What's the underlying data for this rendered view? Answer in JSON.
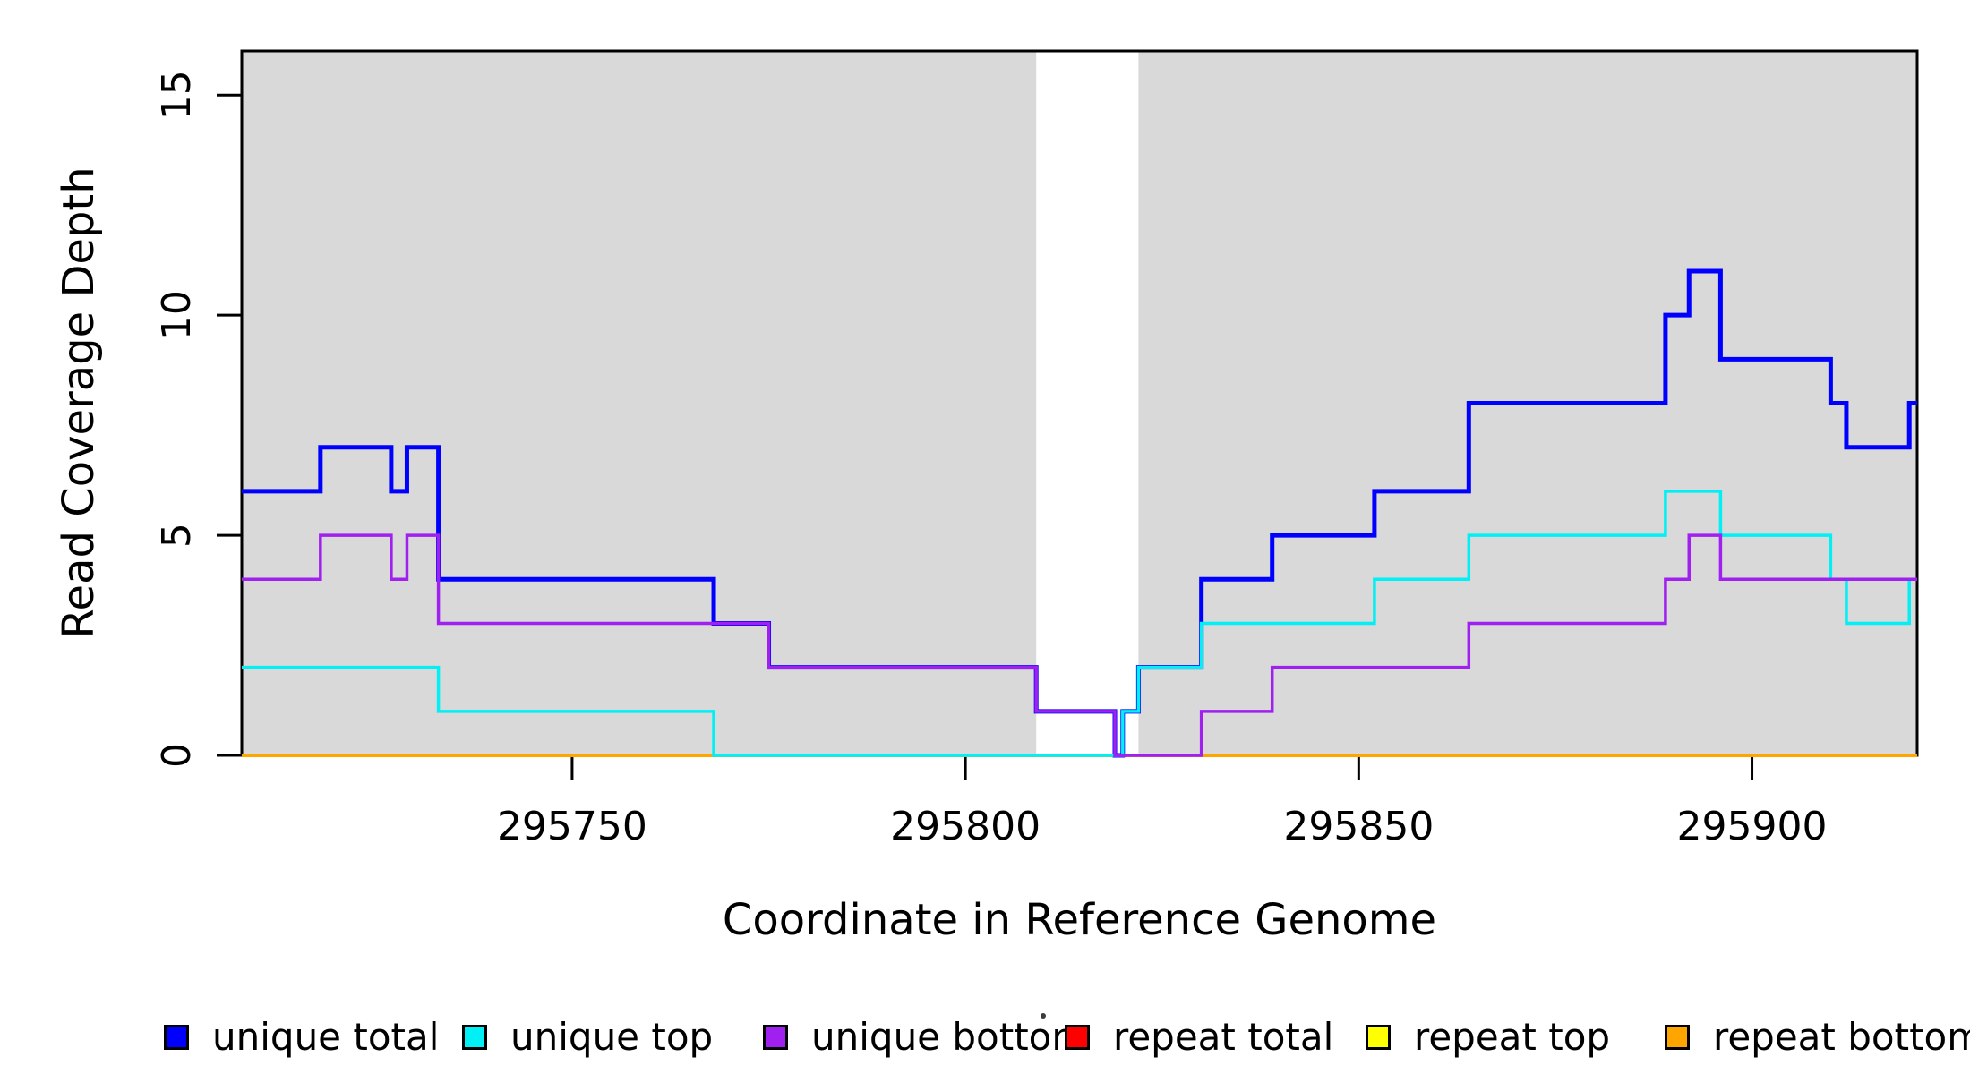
{
  "figure": {
    "background": "#FFFFFF"
  },
  "chart_data": {
    "type": "line",
    "subtype": "step-coverage-plot",
    "title": "",
    "xlabel": "Coordinate in Reference Genome",
    "ylabel": "Read Coverage Depth",
    "xlim": [
      295708,
      295921
    ],
    "ylim": [
      0,
      16
    ],
    "x_ticks": [
      "295750",
      "295800",
      "295850",
      "295900"
    ],
    "x_tick_values": [
      295750,
      295800,
      295850,
      295900
    ],
    "y_ticks": [
      "0",
      "5",
      "10",
      "15"
    ],
    "y_tick_values": [
      0,
      5,
      10,
      15
    ],
    "grid": "off",
    "step_style": "post",
    "shade_color": "#D9D9D9",
    "shaded_regions": [
      [
        295708,
        295809
      ],
      [
        295822,
        295921
      ]
    ],
    "gap_region": [
      295809,
      295822
    ],
    "draw_order": [
      "repeat total",
      "repeat top",
      "repeat bottom",
      "unique total",
      "unique top",
      "unique bottom"
    ],
    "series": [
      {
        "name": "unique total",
        "color": "#0000FF",
        "line_width": 5,
        "breakpoints": [
          [
            295708,
            6
          ],
          [
            295718,
            7
          ],
          [
            295727,
            6
          ],
          [
            295729,
            7
          ],
          [
            295733,
            4
          ],
          [
            295768,
            3
          ],
          [
            295775,
            2
          ],
          [
            295809,
            1
          ],
          [
            295819,
            0
          ],
          [
            295820,
            1
          ],
          [
            295822,
            2
          ],
          [
            295830,
            4
          ],
          [
            295839,
            5
          ],
          [
            295852,
            6
          ],
          [
            295864,
            8
          ],
          [
            295889,
            10
          ],
          [
            295892,
            11
          ],
          [
            295896,
            9
          ],
          [
            295910,
            8
          ],
          [
            295912,
            7
          ],
          [
            295920,
            8
          ]
        ]
      },
      {
        "name": "unique top",
        "color": "#00F0F5",
        "line_width": 3.5,
        "breakpoints": [
          [
            295708,
            2
          ],
          [
            295733,
            1
          ],
          [
            295768,
            0
          ],
          [
            295820,
            1
          ],
          [
            295822,
            2
          ],
          [
            295830,
            3
          ],
          [
            295852,
            4
          ],
          [
            295864,
            5
          ],
          [
            295889,
            6
          ],
          [
            295896,
            5
          ],
          [
            295910,
            4
          ],
          [
            295912,
            3
          ],
          [
            295920,
            4
          ]
        ]
      },
      {
        "name": "unique bottom",
        "color": "#A020F0",
        "line_width": 3.5,
        "breakpoints": [
          [
            295708,
            4
          ],
          [
            295718,
            5
          ],
          [
            295727,
            4
          ],
          [
            295729,
            5
          ],
          [
            295733,
            3
          ],
          [
            295775,
            2
          ],
          [
            295809,
            1
          ],
          [
            295819,
            0
          ],
          [
            295830,
            1
          ],
          [
            295839,
            2
          ],
          [
            295864,
            3
          ],
          [
            295889,
            4
          ],
          [
            295892,
            5
          ],
          [
            295896,
            4
          ]
        ]
      },
      {
        "name": "repeat total",
        "color": "#FF0000",
        "line_width": 3.5,
        "breakpoints": [
          [
            295708,
            0
          ]
        ]
      },
      {
        "name": "repeat top",
        "color": "#FFFF00",
        "line_width": 3.5,
        "breakpoints": [
          [
            295708,
            0
          ]
        ]
      },
      {
        "name": "repeat bottom",
        "color": "#FFA500",
        "line_width": 4,
        "breakpoints": [
          [
            295708,
            0
          ]
        ]
      }
    ],
    "legend": {
      "position": "bottom",
      "entries": [
        {
          "label": "unique total",
          "color": "#0000FF"
        },
        {
          "label": "unique top",
          "color": "#00F0F5"
        },
        {
          "label": "unique bottom",
          "color": "#A020F0"
        },
        {
          "label": "repeat total",
          "color": "#FF0000"
        },
        {
          "label": "repeat top",
          "color": "#FFFF00"
        },
        {
          "label": "repeat bottom",
          "color": "#FFA500"
        }
      ]
    }
  }
}
